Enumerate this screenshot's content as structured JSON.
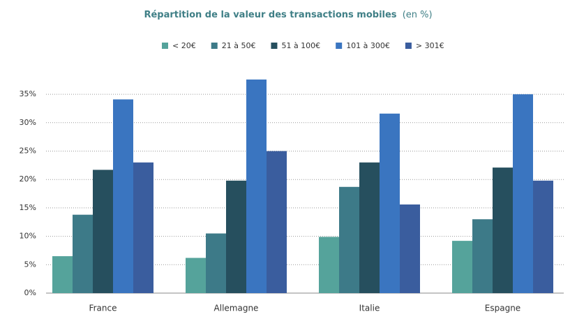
{
  "chart_data": {
    "type": "bar",
    "title": "Répartition de la valeur des transactions mobiles",
    "title_unit": "(en %)",
    "categories": [
      "France",
      "Allemagne",
      "Italie",
      "Espagne"
    ],
    "series": [
      {
        "name": "< 20€",
        "color": "#55a39b",
        "values": [
          6.5,
          6.2,
          9.9,
          9.2
        ]
      },
      {
        "name": "21 à 50€",
        "color": "#3d7a88",
        "values": [
          13.8,
          10.5,
          18.7,
          13
        ]
      },
      {
        "name": "51 à 100€",
        "color": "#264f5e",
        "values": [
          21.7,
          19.8,
          23,
          22.1
        ]
      },
      {
        "name": "101 à 300€",
        "color": "#3a75c0",
        "values": [
          34.1,
          37.6,
          31.6,
          35
        ]
      },
      {
        "name": "> 301€",
        "color": "#3a5d9e",
        "values": [
          23,
          25,
          15.6,
          19.8
        ]
      }
    ],
    "ylim": [
      0,
      40
    ],
    "yticks": [
      {
        "value": 0,
        "label": "0%"
      },
      {
        "value": 5,
        "label": "5%"
      },
      {
        "value": 10,
        "label": "10%"
      },
      {
        "value": 15,
        "label": "15%"
      },
      {
        "value": 20,
        "label": "20%"
      },
      {
        "value": 25,
        "label": "25%"
      },
      {
        "value": 30,
        "label": "30%"
      },
      {
        "value": 35,
        "label": "35%"
      }
    ],
    "grid": true
  }
}
